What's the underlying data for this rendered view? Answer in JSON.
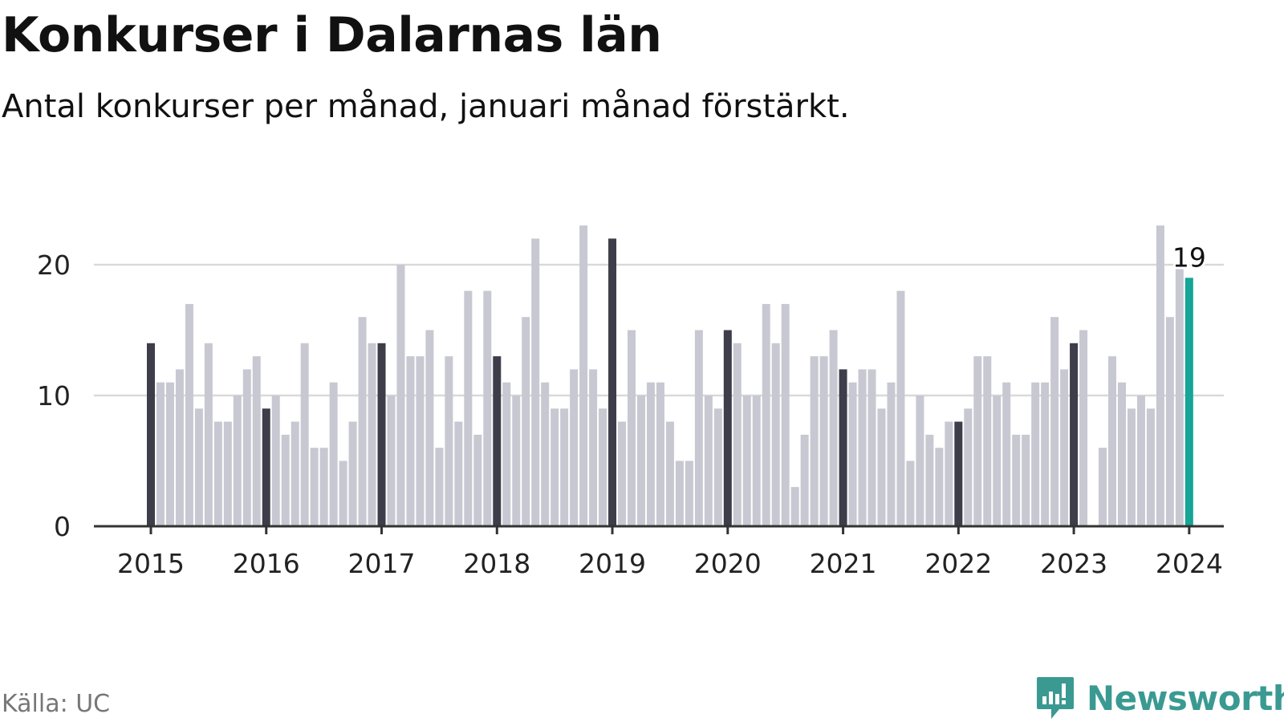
{
  "header": {
    "title": "Konkurser i Dalarnas län",
    "subtitle": "Antal konkurser per månad, januari månad förstärkt."
  },
  "footer": {
    "source": "Källa: UC",
    "brand": "Newsworthy"
  },
  "colors": {
    "bar": "#c8c8d2",
    "january": "#3e3d4a",
    "latest": "#16a596",
    "grid": "#d9d9d9",
    "axis": "#333333",
    "brand": "#3a9a92"
  },
  "chart_data": {
    "type": "bar",
    "x_start": "2015-01",
    "ylim": [
      0,
      23
    ],
    "yticks": [
      0,
      10,
      20
    ],
    "xticks": [
      "2015",
      "2016",
      "2017",
      "2018",
      "2019",
      "2020",
      "2021",
      "2022",
      "2023",
      "2024"
    ],
    "grid": true,
    "highlight": "january",
    "annotation": {
      "month": "2024-01",
      "label": "19"
    },
    "series": [
      {
        "values": [
          14,
          11,
          11,
          12,
          17,
          9,
          14,
          8,
          8,
          10,
          12,
          13,
          9,
          10,
          7,
          8,
          14,
          6,
          6,
          11,
          5,
          8,
          16,
          14,
          14,
          10,
          20,
          13,
          13,
          15,
          6,
          13,
          8,
          18,
          7,
          18,
          13,
          11,
          10,
          16,
          22,
          11,
          9,
          9,
          12,
          23,
          12,
          9,
          22,
          8,
          15,
          10,
          11,
          11,
          8,
          5,
          5,
          15,
          10,
          9,
          15,
          14,
          10,
          10,
          17,
          14,
          17,
          3,
          7,
          13,
          13,
          15,
          12,
          11,
          12,
          12,
          9,
          11,
          18,
          5,
          10,
          7,
          6,
          8,
          8,
          9,
          13,
          13,
          10,
          11,
          7,
          7,
          11,
          11,
          16,
          12,
          14,
          15,
          0,
          6,
          13,
          11,
          9,
          10,
          9,
          23,
          16,
          20,
          19
        ]
      }
    ]
  }
}
